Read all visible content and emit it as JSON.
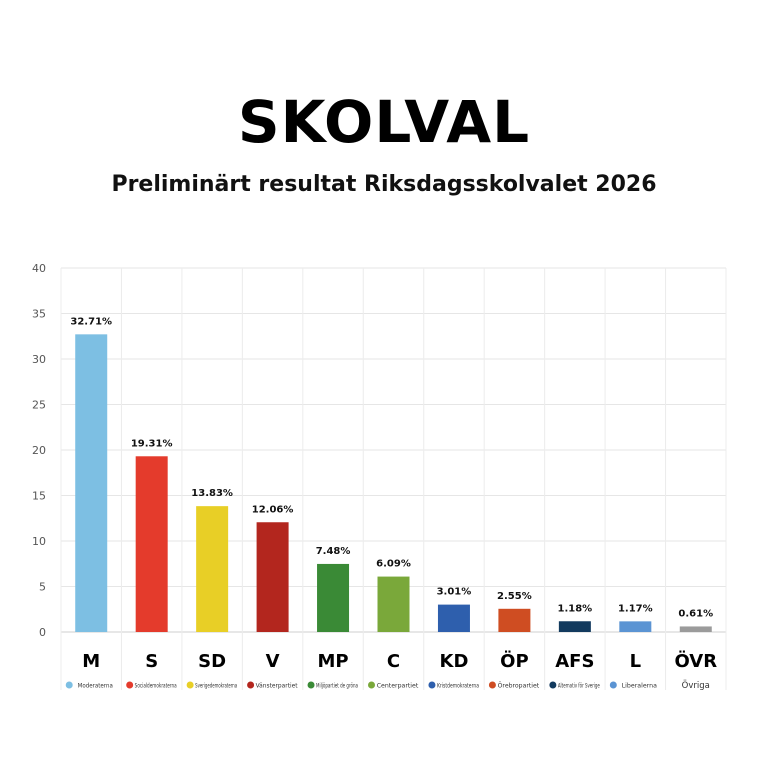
{
  "title": "SKOLVAL",
  "subtitle": "Preliminärt resultat Riksdagsskolvalet 2026",
  "chart_data": {
    "type": "bar",
    "ylim": [
      0,
      40
    ],
    "yticks": [
      0,
      5,
      10,
      15,
      20,
      25,
      30,
      35,
      40
    ],
    "grid": true,
    "categories": [
      "M",
      "S",
      "SD",
      "V",
      "MP",
      "C",
      "KD",
      "ÖP",
      "AFS",
      "L",
      "ÖVR"
    ],
    "values": [
      32.71,
      19.31,
      13.83,
      12.06,
      7.48,
      6.09,
      3.01,
      2.55,
      1.18,
      1.17,
      0.61
    ],
    "value_labels": [
      "32.71%",
      "19.31%",
      "13.83%",
      "12.06%",
      "7.48%",
      "6.09%",
      "3.01%",
      "2.55%",
      "1.18%",
      "1.17%",
      "0.61%"
    ],
    "colors": [
      "#7dbfe3",
      "#e43b2c",
      "#e8cf26",
      "#b3261e",
      "#3a8a36",
      "#7aa83a",
      "#2e5fad",
      "#cf4d22",
      "#123a5e",
      "#5b94d3",
      "#9b9b9b"
    ],
    "party_names": [
      "Moderaterna",
      "Socialdemokraterna",
      "Sverigedemokraterna",
      "Vänsterpartiet",
      "Miljöpartiet de gröna",
      "Centerpartiet",
      "Kristdemokraterna",
      "Örebropartiet",
      "Alternativ för Sverige",
      "Liberalerna",
      "Övriga"
    ]
  }
}
